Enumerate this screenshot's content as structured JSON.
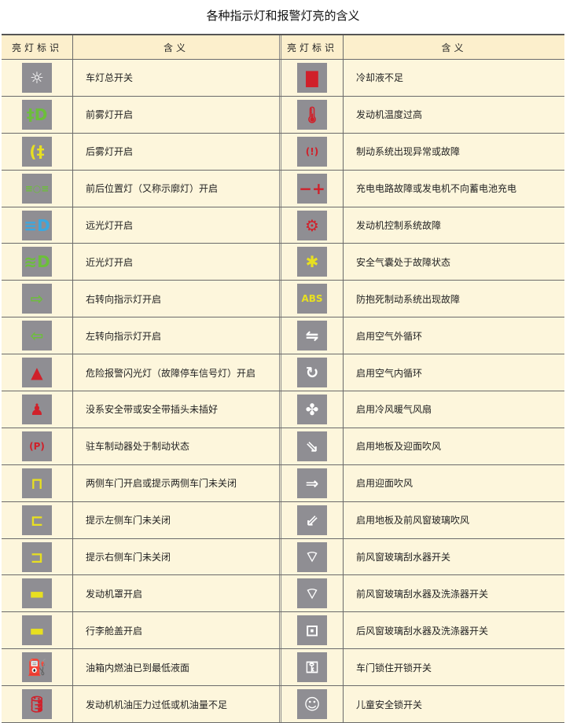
{
  "title": "各种指示灯和报警灯亮的含义",
  "header": {
    "icon_col": "亮灯标识",
    "meaning_col": "含义"
  },
  "rows": [
    {
      "left": {
        "icon": "headlight-master-icon",
        "glyph": "☼",
        "color": "#ffffff",
        "text": "车灯总开关"
      },
      "right": {
        "icon": "coolant-low-icon",
        "glyph": "▇",
        "color": "#d0202a",
        "text": "冷却液不足"
      }
    },
    {
      "left": {
        "icon": "front-fog-icon",
        "glyph": "‡D",
        "color": "#6cbf3a",
        "text": "前雾灯开启"
      },
      "right": {
        "icon": "engine-temp-icon",
        "glyph": "🌡",
        "color": "#d0202a",
        "text": "发动机温度过高"
      }
    },
    {
      "left": {
        "icon": "rear-fog-icon",
        "glyph": "(‡",
        "color": "#e8e020",
        "text": "后雾灯开启"
      },
      "right": {
        "icon": "brake-warning-icon",
        "glyph": "(!)",
        "color": "#d0202a",
        "text": "制动系统出现异常或故障"
      }
    },
    {
      "left": {
        "icon": "position-light-icon",
        "glyph": "≡○≡",
        "color": "#6cbf3a",
        "text": "前后位置灯（又称示廓灯）开启"
      },
      "right": {
        "icon": "battery-icon",
        "glyph": "−+",
        "color": "#d0202a",
        "text": "充电电路故障或发电机不向蓄电池充电"
      }
    },
    {
      "left": {
        "icon": "high-beam-icon",
        "glyph": "≡D",
        "color": "#3aa8e0",
        "text": "远光灯开启"
      },
      "right": {
        "icon": "check-engine-icon",
        "glyph": "⚙",
        "color": "#d0202a",
        "text": "发动机控制系统故障"
      }
    },
    {
      "left": {
        "icon": "low-beam-icon",
        "glyph": "≋D",
        "color": "#6cbf3a",
        "text": "近光灯开启"
      },
      "right": {
        "icon": "airbag-icon",
        "glyph": "✱",
        "color": "#e8e020",
        "text": "安全气囊处于故障状态"
      }
    },
    {
      "left": {
        "icon": "right-turn-icon",
        "glyph": "⇨",
        "color": "#6cbf3a",
        "text": "右转向指示灯开启"
      },
      "right": {
        "icon": "abs-icon",
        "glyph": "ABS",
        "color": "#e8e020",
        "text": "防抱死制动系统出现故障"
      }
    },
    {
      "left": {
        "icon": "left-turn-icon",
        "glyph": "⇦",
        "color": "#6cbf3a",
        "text": "左转向指示灯开启"
      },
      "right": {
        "icon": "outside-air-icon",
        "glyph": "⇋",
        "color": "#ffffff",
        "text": "启用空气外循环"
      }
    },
    {
      "left": {
        "icon": "hazard-icon",
        "glyph": "▲",
        "color": "#d0202a",
        "text": "危险报警闪光灯（故障停车信号灯）开启"
      },
      "right": {
        "icon": "recirculation-icon",
        "glyph": "↻",
        "color": "#ffffff",
        "text": "启用空气内循环"
      }
    },
    {
      "left": {
        "icon": "seatbelt-icon",
        "glyph": "♟",
        "color": "#d0202a",
        "text": "没系安全带或安全带插头未插好"
      },
      "right": {
        "icon": "fan-icon",
        "glyph": "✤",
        "color": "#ffffff",
        "text": "启用冷风暖气风扇"
      }
    },
    {
      "left": {
        "icon": "parking-brake-icon",
        "glyph": "(P)",
        "color": "#d0202a",
        "text": "驻车制动器处于制动状态"
      },
      "right": {
        "icon": "floor-face-air-icon",
        "glyph": "⇘",
        "color": "#ffffff",
        "text": "启用地板及迎面吹风"
      }
    },
    {
      "left": {
        "icon": "both-doors-open-icon",
        "glyph": "⊓",
        "color": "#e8e020",
        "text": "两侧车门开启或提示两侧车门未关闭"
      },
      "right": {
        "icon": "face-air-icon",
        "glyph": "⇒",
        "color": "#ffffff",
        "text": "启用迎面吹风"
      }
    },
    {
      "left": {
        "icon": "left-door-open-icon",
        "glyph": "⊏",
        "color": "#e8e020",
        "text": "提示左侧车门未关闭"
      },
      "right": {
        "icon": "floor-windshield-air-icon",
        "glyph": "⇙",
        "color": "#ffffff",
        "text": "启用地板及前风窗玻璃吹风"
      }
    },
    {
      "left": {
        "icon": "right-door-open-icon",
        "glyph": "⊐",
        "color": "#e8e020",
        "text": "提示右侧车门未关闭"
      },
      "right": {
        "icon": "front-wiper-icon",
        "glyph": "⌔",
        "color": "#ffffff",
        "text": "前风窗玻璃刮水器开关"
      }
    },
    {
      "left": {
        "icon": "hood-open-icon",
        "glyph": "▬",
        "color": "#e8e020",
        "text": "发动机罩开启"
      },
      "right": {
        "icon": "front-wiper-washer-icon",
        "glyph": "⌔",
        "color": "#ffffff",
        "text": "前风窗玻璃刮水器及洗涤器开关"
      }
    },
    {
      "left": {
        "icon": "trunk-open-icon",
        "glyph": "▬",
        "color": "#e8e020",
        "text": "行李舱盖开启"
      },
      "right": {
        "icon": "rear-wiper-washer-icon",
        "glyph": "⊡",
        "color": "#ffffff",
        "text": "后风窗玻璃刮水器及洗涤器开关"
      }
    },
    {
      "left": {
        "icon": "fuel-low-icon",
        "glyph": "⛽",
        "color": "#e8e020",
        "text": "油箱内燃油已到最低液面"
      },
      "right": {
        "icon": "door-lock-icon",
        "glyph": "⚿",
        "color": "#ffffff",
        "text": "车门锁住开锁开关"
      }
    },
    {
      "left": {
        "icon": "oil-pressure-icon",
        "glyph": "🛢",
        "color": "#d0202a",
        "text": "发动机机油压力过低或机油量不足"
      },
      "right": {
        "icon": "child-lock-icon",
        "glyph": "☺",
        "color": "#ffffff",
        "text": "儿童安全锁开关"
      }
    }
  ]
}
